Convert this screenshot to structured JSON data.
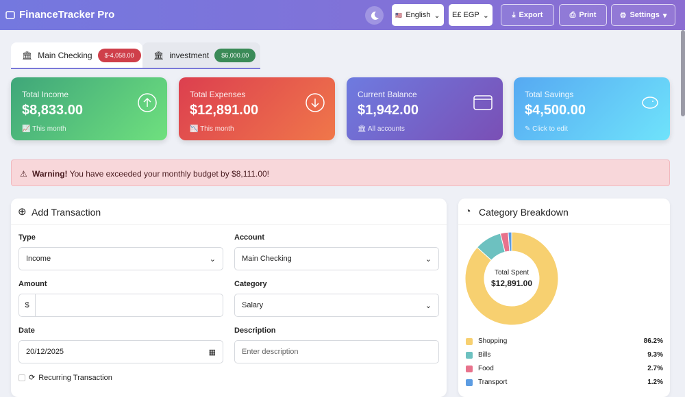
{
  "header": {
    "brand": "FinanceTracker Pro",
    "language": "English",
    "currency": "E£ EGP",
    "export": "Export",
    "print": "Print",
    "settings": "Settings"
  },
  "accounts": [
    {
      "name": "Main Checking",
      "balance": "$-4,058.00"
    },
    {
      "name": "investment",
      "balance": "$6,000.00"
    }
  ],
  "cards": [
    {
      "label": "Total Income",
      "value": "$8,833.00",
      "note": "This month"
    },
    {
      "label": "Total Expenses",
      "value": "$12,891.00",
      "note": "This month"
    },
    {
      "label": "Current Balance",
      "value": "$1,942.00",
      "note": "All accounts"
    },
    {
      "label": "Total Savings",
      "value": "$4,500.00",
      "note": "Click to edit"
    }
  ],
  "warning": {
    "strong": "Warning!",
    "text": "You have exceeded your monthly budget by $8,111.00!"
  },
  "form": {
    "title": "Add Transaction",
    "type_label": "Type",
    "type": "Income",
    "account_label": "Account",
    "account": "Main Checking",
    "amount_label": "Amount",
    "currency_symbol": "$",
    "category_label": "Category",
    "category": "Salary",
    "date_label": "Date",
    "date": "20/12/2025",
    "description_label": "Description",
    "description_placeholder": "Enter description",
    "recurring": "Recurring Transaction"
  },
  "breakdown": {
    "title": "Category Breakdown",
    "center_label": "Total Spent",
    "center_value": "$12,891.00",
    "categories": [
      "Shopping",
      "Bills",
      "Food",
      "Transport"
    ],
    "values": [
      86.2,
      9.3,
      2.7,
      1.2
    ],
    "value_labels": [
      "86.2%",
      "9.3%",
      "2.7%",
      "1.2%"
    ],
    "colors": [
      "#f7d070",
      "#6dc1c0",
      "#e8728c",
      "#5c9ce2"
    ]
  }
}
